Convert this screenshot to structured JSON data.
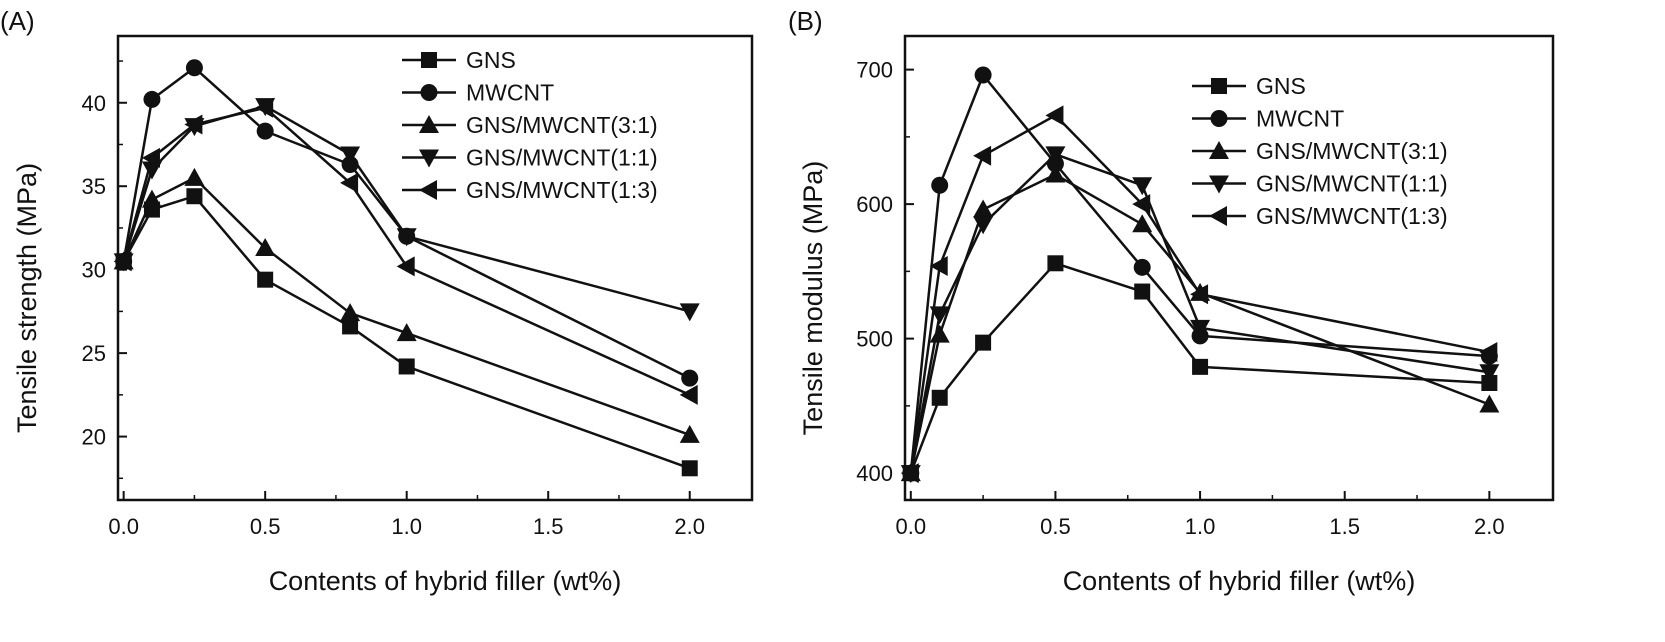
{
  "chart_data": [
    {
      "type": "line",
      "panel_label": "(A)",
      "xlabel": "Contents of hybrid filler (wt%)",
      "ylabel": "Tensile strength (MPa)",
      "xlim": [
        -0.02,
        2.22
      ],
      "ylim": [
        16.2,
        44.0
      ],
      "xticks": [
        0.0,
        0.5,
        1.0,
        1.5,
        2.0
      ],
      "xtick_labels": [
        "0.0",
        "0.5",
        "1.0",
        "1.5",
        "2.0"
      ],
      "yticks": [
        20,
        25,
        30,
        35,
        40
      ],
      "ytick_labels": [
        "20",
        "25",
        "30",
        "35",
        "40"
      ],
      "grid": false,
      "legend_position": "top-right",
      "x": [
        0,
        0.1,
        0.25,
        0.5,
        0.8,
        1.0,
        2.0
      ],
      "series": [
        {
          "name": "GNS",
          "marker": "square",
          "values": [
            30.5,
            33.6,
            34.4,
            29.4,
            26.6,
            24.2,
            18.1
          ]
        },
        {
          "name": "MWCNT",
          "marker": "circle",
          "values": [
            30.5,
            40.2,
            42.1,
            38.3,
            36.3,
            32.0,
            23.5
          ]
        },
        {
          "name": "GNS/MWCNT(3:1)",
          "marker": "triangle-up",
          "values": [
            30.5,
            34.2,
            35.5,
            31.3,
            27.4,
            26.2,
            20.1
          ]
        },
        {
          "name": "GNS/MWCNT(1:1)",
          "marker": "triangle-down",
          "values": [
            30.5,
            36.0,
            38.6,
            39.8,
            36.9,
            32.0,
            27.5
          ]
        },
        {
          "name": "GNS/MWCNT(1:3)",
          "marker": "triangle-left",
          "values": [
            30.5,
            36.7,
            38.7,
            39.7,
            35.2,
            30.2,
            22.5
          ]
        }
      ]
    },
    {
      "type": "line",
      "panel_label": "(B)",
      "xlabel": "Contents of hybrid filler (wt%)",
      "ylabel": "Tensile modulus (MPa)",
      "xlim": [
        -0.02,
        2.22
      ],
      "ylim": [
        380,
        725
      ],
      "xticks": [
        0.0,
        0.5,
        1.0,
        1.5,
        2.0
      ],
      "xtick_labels": [
        "0.0",
        "0.5",
        "1.0",
        "1.5",
        "2.0"
      ],
      "yticks": [
        400,
        500,
        600,
        700
      ],
      "ytick_labels": [
        "400",
        "500",
        "600",
        "700"
      ],
      "grid": false,
      "legend_position": "top-right",
      "x": [
        0,
        0.1,
        0.25,
        0.5,
        0.8,
        1.0,
        2.0
      ],
      "series": [
        {
          "name": "GNS",
          "marker": "square",
          "values": [
            400,
            456,
            497,
            556,
            535,
            479,
            467
          ]
        },
        {
          "name": "MWCNT",
          "marker": "circle",
          "values": [
            400,
            614,
            696,
            630,
            553,
            502,
            487
          ]
        },
        {
          "name": "GNS/MWCNT(3:1)",
          "marker": "triangle-up",
          "values": [
            400,
            503,
            596,
            622,
            585,
            534,
            451
          ]
        },
        {
          "name": "GNS/MWCNT(1:1)",
          "marker": "triangle-down",
          "values": [
            400,
            518,
            585,
            637,
            614,
            508,
            475
          ]
        },
        {
          "name": "GNS/MWCNT(1:3)",
          "marker": "triangle-left",
          "values": [
            400,
            554,
            636,
            666,
            600,
            533,
            490
          ]
        }
      ]
    }
  ]
}
